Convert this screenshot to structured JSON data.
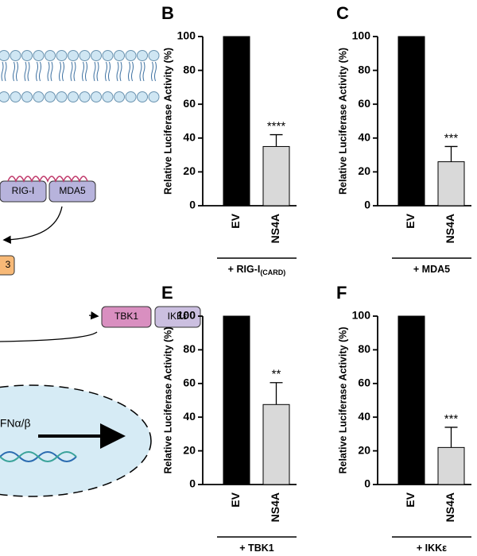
{
  "chart_data": [
    {
      "type": "bar",
      "panel": "B",
      "ylabel": "Relative Luciferase Activity (%)",
      "categories": [
        "EV",
        "NS4A"
      ],
      "values": [
        100,
        35
      ],
      "errors": [
        null,
        7
      ],
      "colors": [
        "#000000",
        "#d9d9d9"
      ],
      "annotations": [
        null,
        "****"
      ],
      "group_label": "+ RIG-I",
      "group_label_sub": "(CARD)",
      "ylim": [
        0,
        100
      ],
      "yticks": [
        0,
        20,
        40,
        60,
        80,
        100
      ]
    },
    {
      "type": "bar",
      "panel": "C",
      "ylabel": "Relative Luciferase Activity (%)",
      "categories": [
        "EV",
        "NS4A"
      ],
      "values": [
        100,
        26
      ],
      "errors": [
        null,
        9
      ],
      "colors": [
        "#000000",
        "#d9d9d9"
      ],
      "annotations": [
        null,
        "***"
      ],
      "group_label": "+ MDA5",
      "ylim": [
        0,
        100
      ],
      "yticks": [
        0,
        20,
        40,
        60,
        80,
        100
      ]
    },
    {
      "type": "bar",
      "panel": "E",
      "ylabel": "Relative Luciferase Activity (%)",
      "categories": [
        "EV",
        "NS4A"
      ],
      "values": [
        100,
        47.5
      ],
      "errors": [
        null,
        13
      ],
      "colors": [
        "#000000",
        "#d9d9d9"
      ],
      "annotations": [
        null,
        "**"
      ],
      "group_label": "+ TBK1",
      "ylim": [
        0,
        100
      ],
      "yticks": [
        0,
        20,
        40,
        60,
        80,
        100
      ]
    },
    {
      "type": "bar",
      "panel": "F",
      "ylabel": "Relative Luciferase Activity (%)",
      "categories": [
        "EV",
        "NS4A"
      ],
      "values": [
        100,
        22
      ],
      "errors": [
        null,
        12
      ],
      "colors": [
        "#000000",
        "#d9d9d9"
      ],
      "annotations": [
        null,
        "***"
      ],
      "group_label": "+ IKKε",
      "ylim": [
        0,
        100
      ],
      "yticks": [
        0,
        20,
        40,
        60,
        80,
        100
      ]
    }
  ],
  "diagram": {
    "rig": "RIG-I",
    "mda5": "MDA5",
    "irf": "3",
    "tbk1": "TBK1",
    "ikke": "IKKε",
    "ifn": "IFNα/β"
  }
}
